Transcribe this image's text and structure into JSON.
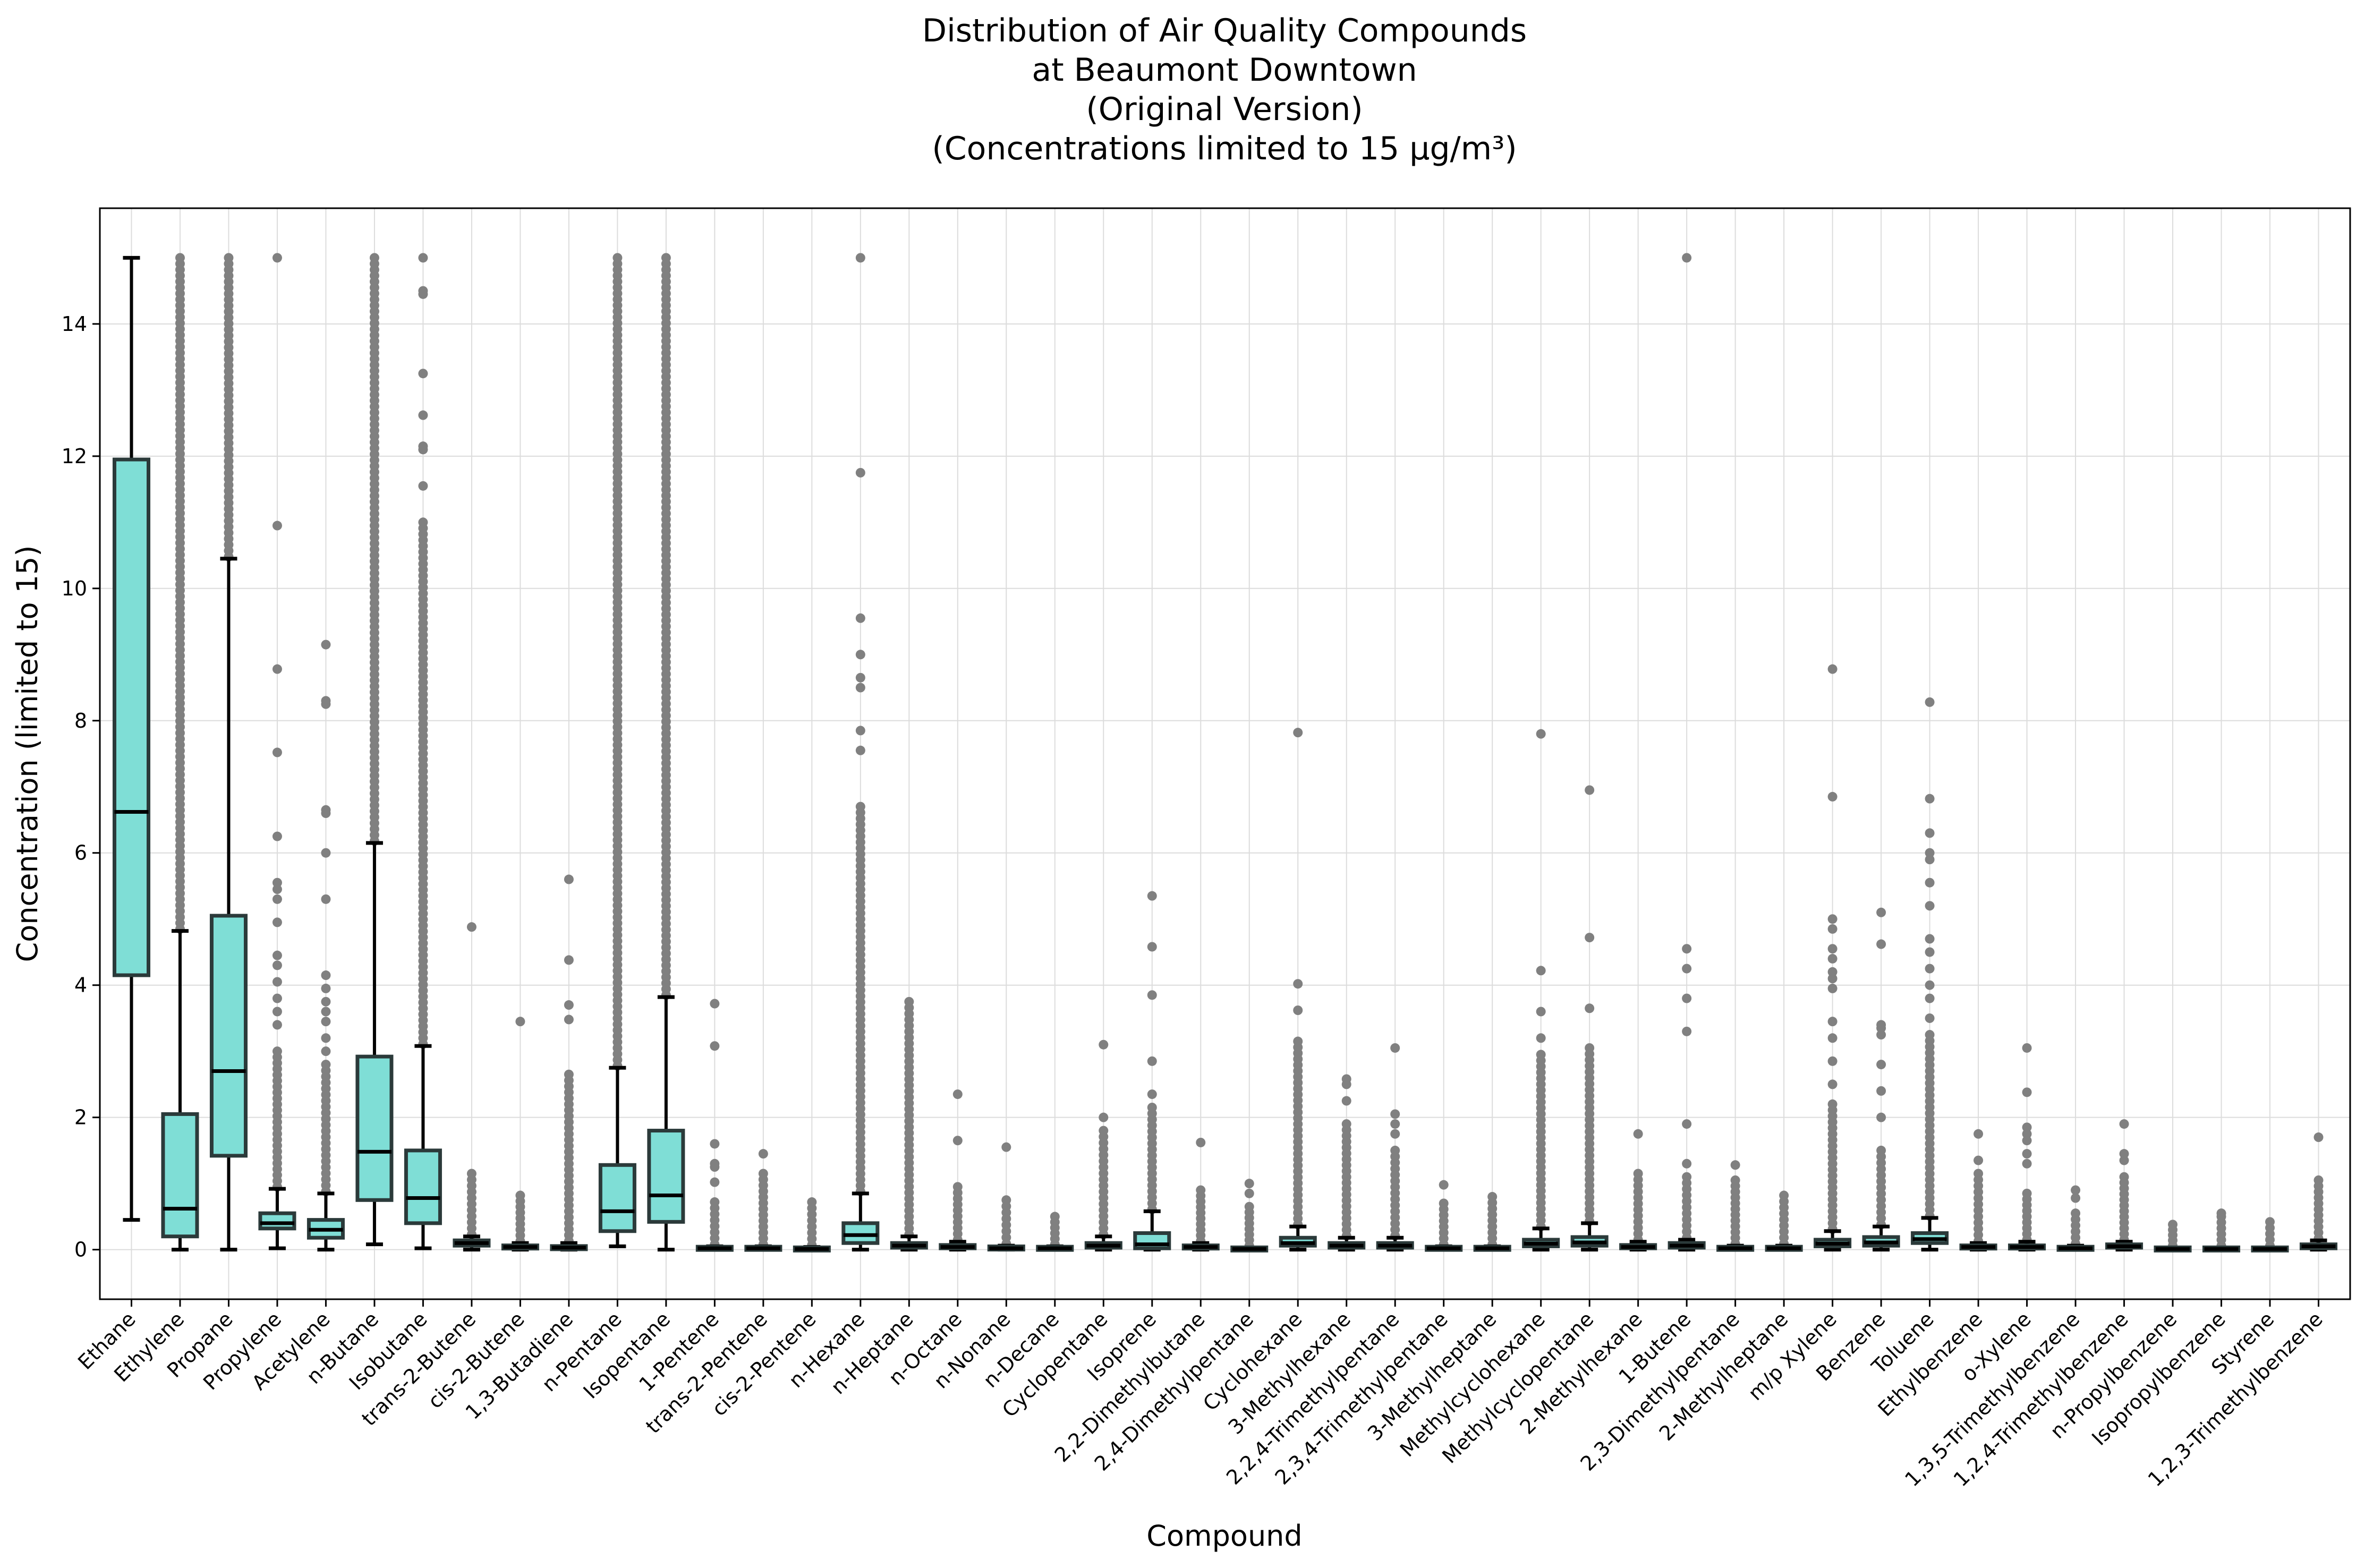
{
  "chart_data": {
    "type": "box",
    "title_lines": [
      "Distribution of Air Quality Compounds",
      "at Beaumont Downtown",
      "(Original Version)",
      "(Concentrations limited to 15 µg/m³)"
    ],
    "xlabel": "Compound",
    "ylabel": "Concentration (limited to 15)",
    "ylim": [
      -0.75,
      15.75
    ],
    "yticks": [
      0,
      2,
      4,
      6,
      8,
      10,
      12,
      14
    ],
    "grid": true,
    "colors": {
      "box_fill": "#7fded6",
      "box_edge": "#2b3a3a",
      "median": "#000000",
      "whisker": "#000000",
      "outlier": "#808080"
    },
    "categories": [
      "Ethane",
      "Ethylene",
      "Propane",
      "Propylene",
      "Acetylene",
      "n-Butane",
      "Isobutane",
      "trans-2-Butene",
      "cis-2-Butene",
      "1,3-Butadiene",
      "n-Pentane",
      "Isopentane",
      "1-Pentene",
      "trans-2-Pentene",
      "cis-2-Pentene",
      "n-Hexane",
      "n-Heptane",
      "n-Octane",
      "n-Nonane",
      "n-Decane",
      "Cyclopentane",
      "Isoprene",
      "2,2-Dimethylbutane",
      "2,4-Dimethylpentane",
      "Cyclohexane",
      "3-Methylhexane",
      "2,2,4-Trimethylpentane",
      "2,3,4-Trimethylpentane",
      "3-Methylheptane",
      "Methylcyclohexane",
      "Methylcyclopentane",
      "2-Methylhexane",
      "1-Butene",
      "2,3-Dimethylpentane",
      "2-Methylheptane",
      "m/p Xylene",
      "Benzene",
      "Toluene",
      "Ethylbenzene",
      "o-Xylene",
      "1,3,5-Trimethylbenzene",
      "1,2,4-Trimethylbenzene",
      "n-Propylbenzene",
      "Isopropylbenzene",
      "Styrene",
      "1,2,3-Trimethylbenzene"
    ],
    "boxes": [
      {
        "whislo": 0.45,
        "q1": 4.15,
        "med": 6.62,
        "q3": 11.95,
        "whishi": 15.0,
        "outlier_max": 15.0,
        "fliers": []
      },
      {
        "whislo": 0.0,
        "q1": 0.2,
        "med": 0.62,
        "q3": 2.05,
        "whishi": 4.82,
        "outlier_max": 15.0,
        "fliers": []
      },
      {
        "whislo": 0.0,
        "q1": 1.42,
        "med": 2.7,
        "q3": 5.05,
        "whishi": 10.45,
        "outlier_max": 15.0,
        "fliers": []
      },
      {
        "whislo": 0.02,
        "q1": 0.32,
        "med": 0.4,
        "q3": 0.55,
        "whishi": 0.92,
        "outlier_max": 3.0,
        "fliers": [
          15.0,
          10.95,
          8.78,
          7.52,
          6.25,
          5.55,
          5.45,
          5.3,
          4.95,
          4.45,
          4.3,
          4.05,
          3.8,
          3.6,
          3.4
        ]
      },
      {
        "whislo": 0.0,
        "q1": 0.18,
        "med": 0.3,
        "q3": 0.45,
        "whishi": 0.85,
        "outlier_max": 2.8,
        "fliers": [
          9.15,
          8.3,
          8.25,
          6.65,
          6.6,
          6.0,
          5.3,
          4.15,
          3.95,
          3.75,
          3.6,
          3.45,
          3.2,
          3.0
        ]
      },
      {
        "whislo": 0.08,
        "q1": 0.75,
        "med": 1.48,
        "q3": 2.92,
        "whishi": 6.15,
        "outlier_max": 15.0,
        "fliers": []
      },
      {
        "whislo": 0.02,
        "q1": 0.4,
        "med": 0.78,
        "q3": 1.5,
        "whishi": 3.08,
        "outlier_max": 11.0,
        "fliers": [
          15.0,
          14.5,
          14.45,
          13.25,
          12.62,
          12.15,
          12.1,
          11.55
        ]
      },
      {
        "whislo": 0.0,
        "q1": 0.06,
        "med": 0.1,
        "q3": 0.14,
        "whishi": 0.2,
        "outlier_max": 1.15,
        "fliers": [
          4.88
        ]
      },
      {
        "whislo": 0.0,
        "q1": 0.02,
        "med": 0.04,
        "q3": 0.06,
        "whishi": 0.1,
        "outlier_max": 0.82,
        "fliers": [
          3.45
        ]
      },
      {
        "whislo": 0.0,
        "q1": 0.01,
        "med": 0.03,
        "q3": 0.05,
        "whishi": 0.1,
        "outlier_max": 2.65,
        "fliers": [
          5.6,
          4.38,
          3.7,
          3.48
        ]
      },
      {
        "whislo": 0.05,
        "q1": 0.28,
        "med": 0.58,
        "q3": 1.28,
        "whishi": 2.75,
        "outlier_max": 15.0,
        "fliers": []
      },
      {
        "whislo": 0.0,
        "q1": 0.42,
        "med": 0.82,
        "q3": 1.8,
        "whishi": 3.82,
        "outlier_max": 15.0,
        "fliers": []
      },
      {
        "whislo": 0.0,
        "q1": 0.01,
        "med": 0.02,
        "q3": 0.03,
        "whishi": 0.05,
        "outlier_max": 0.72,
        "fliers": [
          3.72,
          3.08,
          1.6,
          1.3,
          1.25,
          1.02
        ]
      },
      {
        "whislo": 0.0,
        "q1": 0.01,
        "med": 0.02,
        "q3": 0.03,
        "whishi": 0.05,
        "outlier_max": 1.15,
        "fliers": [
          1.45
        ]
      },
      {
        "whislo": 0.0,
        "q1": 0.0,
        "med": 0.01,
        "q3": 0.02,
        "whishi": 0.04,
        "outlier_max": 0.72,
        "fliers": []
      },
      {
        "whislo": 0.0,
        "q1": 0.1,
        "med": 0.22,
        "q3": 0.4,
        "whishi": 0.85,
        "outlier_max": 6.7,
        "fliers": [
          15.0,
          11.75,
          9.55,
          9.0,
          8.65,
          8.5,
          7.85,
          7.55
        ]
      },
      {
        "whislo": 0.0,
        "q1": 0.03,
        "med": 0.06,
        "q3": 0.1,
        "whishi": 0.2,
        "outlier_max": 3.75,
        "fliers": []
      },
      {
        "whislo": 0.0,
        "q1": 0.02,
        "med": 0.04,
        "q3": 0.07,
        "whishi": 0.12,
        "outlier_max": 0.95,
        "fliers": [
          2.35,
          1.65
        ]
      },
      {
        "whislo": 0.0,
        "q1": 0.01,
        "med": 0.02,
        "q3": 0.04,
        "whishi": 0.06,
        "outlier_max": 0.75,
        "fliers": [
          1.55
        ]
      },
      {
        "whislo": 0.0,
        "q1": 0.01,
        "med": 0.02,
        "q3": 0.03,
        "whishi": 0.05,
        "outlier_max": 0.5,
        "fliers": []
      },
      {
        "whislo": 0.0,
        "q1": 0.03,
        "med": 0.06,
        "q3": 0.1,
        "whishi": 0.2,
        "outlier_max": 1.8,
        "fliers": [
          3.1,
          2.0
        ]
      },
      {
        "whislo": 0.0,
        "q1": 0.02,
        "med": 0.08,
        "q3": 0.25,
        "whishi": 0.58,
        "outlier_max": 2.15,
        "fliers": [
          5.35,
          4.58,
          3.85,
          2.85,
          2.35
        ]
      },
      {
        "whislo": 0.0,
        "q1": 0.02,
        "med": 0.04,
        "q3": 0.06,
        "whishi": 0.1,
        "outlier_max": 0.9,
        "fliers": [
          1.62
        ]
      },
      {
        "whislo": 0.0,
        "q1": 0.0,
        "med": 0.01,
        "q3": 0.02,
        "whishi": 0.03,
        "outlier_max": 0.65,
        "fliers": [
          1.0,
          0.85
        ]
      },
      {
        "whislo": 0.0,
        "q1": 0.06,
        "med": 0.1,
        "q3": 0.18,
        "whishi": 0.35,
        "outlier_max": 3.15,
        "fliers": [
          7.82,
          4.02,
          3.62
        ]
      },
      {
        "whislo": 0.0,
        "q1": 0.03,
        "med": 0.06,
        "q3": 0.1,
        "whishi": 0.18,
        "outlier_max": 1.9,
        "fliers": [
          2.58,
          2.5,
          2.25
        ]
      },
      {
        "whislo": 0.0,
        "q1": 0.03,
        "med": 0.06,
        "q3": 0.1,
        "whishi": 0.18,
        "outlier_max": 1.5,
        "fliers": [
          3.05,
          2.05,
          1.9,
          1.75
        ]
      },
      {
        "whislo": 0.0,
        "q1": 0.01,
        "med": 0.02,
        "q3": 0.03,
        "whishi": 0.05,
        "outlier_max": 0.7,
        "fliers": [
          0.98
        ]
      },
      {
        "whislo": 0.0,
        "q1": 0.01,
        "med": 0.02,
        "q3": 0.03,
        "whishi": 0.05,
        "outlier_max": 0.8,
        "fliers": []
      },
      {
        "whislo": 0.0,
        "q1": 0.05,
        "med": 0.09,
        "q3": 0.15,
        "whishi": 0.32,
        "outlier_max": 2.95,
        "fliers": [
          7.8,
          4.22,
          3.6,
          3.2
        ]
      },
      {
        "whislo": 0.0,
        "q1": 0.06,
        "med": 0.11,
        "q3": 0.19,
        "whishi": 0.4,
        "outlier_max": 3.05,
        "fliers": [
          6.95,
          4.72,
          3.65
        ]
      },
      {
        "whislo": 0.0,
        "q1": 0.02,
        "med": 0.04,
        "q3": 0.07,
        "whishi": 0.12,
        "outlier_max": 1.15,
        "fliers": [
          1.75
        ]
      },
      {
        "whislo": 0.0,
        "q1": 0.03,
        "med": 0.06,
        "q3": 0.1,
        "whishi": 0.15,
        "outlier_max": 1.1,
        "fliers": [
          15.0,
          4.55,
          4.25,
          3.8,
          3.3,
          1.9,
          1.3
        ]
      },
      {
        "whislo": 0.0,
        "q1": 0.01,
        "med": 0.02,
        "q3": 0.03,
        "whishi": 0.06,
        "outlier_max": 1.05,
        "fliers": [
          1.28
        ]
      },
      {
        "whislo": 0.0,
        "q1": 0.01,
        "med": 0.02,
        "q3": 0.03,
        "whishi": 0.06,
        "outlier_max": 0.82,
        "fliers": []
      },
      {
        "whislo": 0.0,
        "q1": 0.05,
        "med": 0.09,
        "q3": 0.15,
        "whishi": 0.28,
        "outlier_max": 2.2,
        "fliers": [
          8.78,
          6.85,
          5.0,
          4.85,
          4.55,
          4.4,
          4.2,
          4.1,
          3.95,
          3.45,
          3.2,
          2.85,
          2.5
        ]
      },
      {
        "whislo": 0.0,
        "q1": 0.06,
        "med": 0.11,
        "q3": 0.19,
        "whishi": 0.35,
        "outlier_max": 1.5,
        "fliers": [
          5.1,
          4.62,
          3.4,
          3.35,
          3.25,
          2.8,
          2.4,
          2.0
        ]
      },
      {
        "whislo": 0.0,
        "q1": 0.1,
        "med": 0.16,
        "q3": 0.25,
        "whishi": 0.48,
        "outlier_max": 3.25,
        "fliers": [
          8.28,
          6.82,
          6.3,
          6.0,
          5.9,
          5.55,
          5.2,
          4.7,
          4.5,
          4.25,
          4.0,
          3.8,
          3.5
        ]
      },
      {
        "whislo": 0.0,
        "q1": 0.02,
        "med": 0.04,
        "q3": 0.06,
        "whishi": 0.1,
        "outlier_max": 1.15,
        "fliers": [
          1.75,
          1.35
        ]
      },
      {
        "whislo": 0.0,
        "q1": 0.02,
        "med": 0.04,
        "q3": 0.06,
        "whishi": 0.12,
        "outlier_max": 0.85,
        "fliers": [
          3.05,
          2.38,
          1.85,
          1.75,
          1.65,
          1.45,
          1.3
        ]
      },
      {
        "whislo": 0.0,
        "q1": 0.01,
        "med": 0.02,
        "q3": 0.03,
        "whishi": 0.06,
        "outlier_max": 0.55,
        "fliers": [
          0.9,
          0.78
        ]
      },
      {
        "whislo": 0.0,
        "q1": 0.03,
        "med": 0.05,
        "q3": 0.08,
        "whishi": 0.12,
        "outlier_max": 1.1,
        "fliers": [
          1.9,
          1.45,
          1.35
        ]
      },
      {
        "whislo": 0.0,
        "q1": 0.0,
        "med": 0.01,
        "q3": 0.02,
        "whishi": 0.03,
        "outlier_max": 0.3,
        "fliers": [
          0.38
        ]
      },
      {
        "whislo": 0.0,
        "q1": 0.0,
        "med": 0.01,
        "q3": 0.02,
        "whishi": 0.03,
        "outlier_max": 0.5,
        "fliers": [
          0.55
        ]
      },
      {
        "whislo": 0.0,
        "q1": 0.0,
        "med": 0.01,
        "q3": 0.02,
        "whishi": 0.03,
        "outlier_max": 0.42,
        "fliers": []
      },
      {
        "whislo": 0.0,
        "q1": 0.02,
        "med": 0.05,
        "q3": 0.08,
        "whishi": 0.14,
        "outlier_max": 1.05,
        "fliers": [
          1.7
        ]
      }
    ]
  }
}
